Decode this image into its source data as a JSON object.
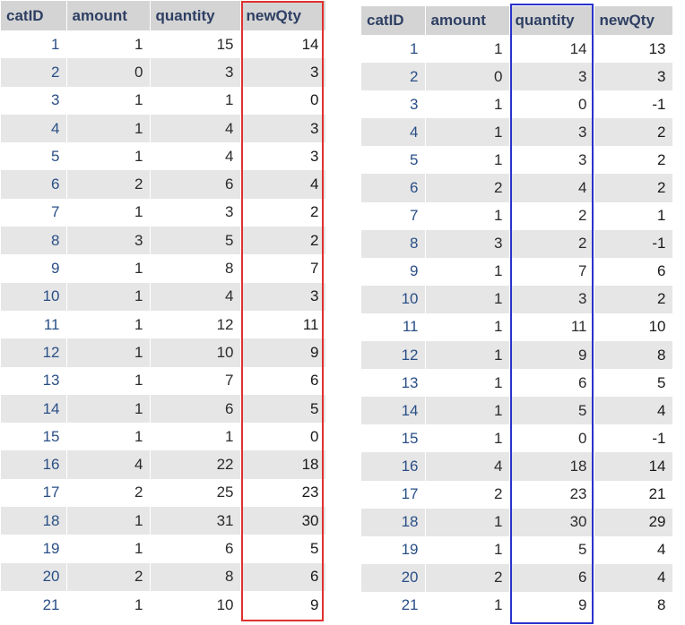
{
  "tables": {
    "left": {
      "columns": [
        "catID",
        "amount",
        "quantity",
        "newQty"
      ],
      "highlight_color": "#e03030",
      "highlighted_column": "newQty",
      "rows": [
        [
          "1",
          "1",
          "15",
          "14"
        ],
        [
          "2",
          "0",
          "3",
          "3"
        ],
        [
          "3",
          "1",
          "1",
          "0"
        ],
        [
          "4",
          "1",
          "4",
          "3"
        ],
        [
          "5",
          "1",
          "4",
          "3"
        ],
        [
          "6",
          "2",
          "6",
          "4"
        ],
        [
          "7",
          "1",
          "3",
          "2"
        ],
        [
          "8",
          "3",
          "5",
          "2"
        ],
        [
          "9",
          "1",
          "8",
          "7"
        ],
        [
          "10",
          "1",
          "4",
          "3"
        ],
        [
          "11",
          "1",
          "12",
          "11"
        ],
        [
          "12",
          "1",
          "10",
          "9"
        ],
        [
          "13",
          "1",
          "7",
          "6"
        ],
        [
          "14",
          "1",
          "6",
          "5"
        ],
        [
          "15",
          "1",
          "1",
          "0"
        ],
        [
          "16",
          "4",
          "22",
          "18"
        ],
        [
          "17",
          "2",
          "25",
          "23"
        ],
        [
          "18",
          "1",
          "31",
          "30"
        ],
        [
          "19",
          "1",
          "6",
          "5"
        ],
        [
          "20",
          "2",
          "8",
          "6"
        ],
        [
          "21",
          "1",
          "10",
          "9"
        ]
      ]
    },
    "right": {
      "columns": [
        "catID",
        "amount",
        "quantity",
        "newQty"
      ],
      "highlight_color": "#2a33cc",
      "highlighted_column": "quantity",
      "rows": [
        [
          "1",
          "1",
          "14",
          "13"
        ],
        [
          "2",
          "0",
          "3",
          "3"
        ],
        [
          "3",
          "1",
          "0",
          "-1"
        ],
        [
          "4",
          "1",
          "3",
          "2"
        ],
        [
          "5",
          "1",
          "3",
          "2"
        ],
        [
          "6",
          "2",
          "4",
          "2"
        ],
        [
          "7",
          "1",
          "2",
          "1"
        ],
        [
          "8",
          "3",
          "2",
          "-1"
        ],
        [
          "9",
          "1",
          "7",
          "6"
        ],
        [
          "10",
          "1",
          "3",
          "2"
        ],
        [
          "11",
          "1",
          "11",
          "10"
        ],
        [
          "12",
          "1",
          "9",
          "8"
        ],
        [
          "13",
          "1",
          "6",
          "5"
        ],
        [
          "14",
          "1",
          "5",
          "4"
        ],
        [
          "15",
          "1",
          "0",
          "-1"
        ],
        [
          "16",
          "4",
          "18",
          "14"
        ],
        [
          "17",
          "2",
          "23",
          "21"
        ],
        [
          "18",
          "1",
          "30",
          "29"
        ],
        [
          "19",
          "1",
          "5",
          "4"
        ],
        [
          "20",
          "2",
          "6",
          "4"
        ],
        [
          "21",
          "1",
          "9",
          "8"
        ]
      ]
    }
  }
}
